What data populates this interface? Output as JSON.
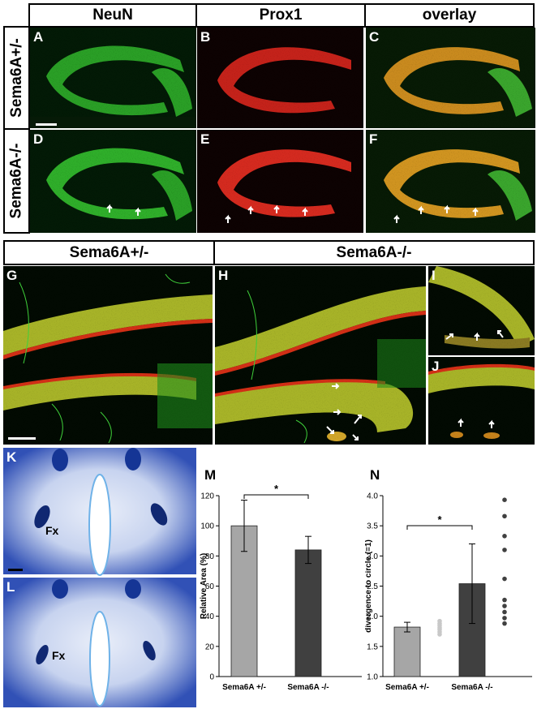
{
  "figure": {
    "top_headers": [
      "NeuN",
      "Prox1",
      "overlay"
    ],
    "row_labels": [
      "Sema6A+/-",
      "Sema6A-/-"
    ],
    "panel_letters_top": [
      "A",
      "B",
      "C",
      "D",
      "E",
      "F"
    ],
    "mid_headers": [
      "Sema6A+/-",
      "Sema6A-/-"
    ],
    "panel_letters_mid": [
      "G",
      "H",
      "I",
      "J"
    ],
    "panel_letters_bottom": [
      "K",
      "L"
    ],
    "fx_label": "Fx",
    "chart_letters": [
      "M",
      "N"
    ]
  },
  "chart_data": [
    {
      "type": "bar",
      "title": "",
      "xlabel": "",
      "ylabel": "Relative Area (%)",
      "categories": [
        "Sema6A +/-",
        "Sema6A -/-"
      ],
      "values": [
        100,
        84
      ],
      "errors": [
        17,
        9
      ],
      "ylim": [
        0,
        120
      ],
      "yticks": [
        0,
        20,
        40,
        60,
        80,
        100,
        120
      ],
      "bar_colors": [
        "#a6a6a6",
        "#404040"
      ],
      "significance": "*",
      "grid": false
    },
    {
      "type": "bar",
      "title": "",
      "xlabel": "",
      "ylabel": "divergence to circle (=1)",
      "categories": [
        "Sema6A +/-",
        "Sema6A -/-"
      ],
      "values": [
        1.82,
        2.54
      ],
      "errors": [
        0.08,
        0.66
      ],
      "ylim": [
        1.0,
        4.0
      ],
      "yticks": [
        "1.0",
        "1.5",
        "2.0",
        "2.5",
        "3.0",
        "3.5",
        "4.0"
      ],
      "bar_colors": [
        "#a6a6a6",
        "#404040"
      ],
      "significance": "*",
      "points": [
        [
          1.7,
          1.74,
          1.78,
          1.81,
          1.85,
          1.88,
          1.92
        ],
        [
          1.88,
          1.97,
          2.07,
          2.17,
          2.27,
          2.62,
          3.1,
          3.33,
          3.66,
          3.93
        ]
      ],
      "point_colors": [
        "#c8c8c8",
        "#404040"
      ],
      "grid": false
    }
  ]
}
